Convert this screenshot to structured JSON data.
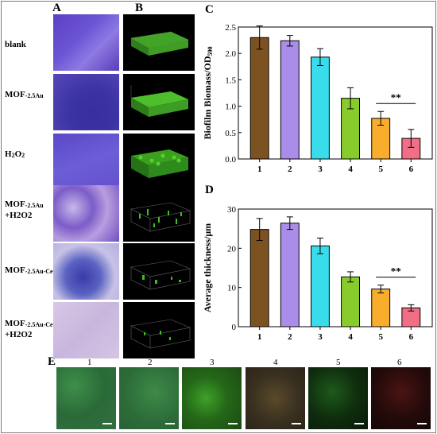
{
  "panels": {
    "A": "A",
    "B": "B",
    "C": "C",
    "D": "D",
    "E": "E"
  },
  "rows": [
    {
      "main": "blank",
      "sub": "",
      "line2": ""
    },
    {
      "main": "MOF",
      "sub": "-2.5Au",
      "line2": ""
    },
    {
      "main": "H",
      "sub": "2",
      "main2": "O",
      "sub2": "2",
      "line2": ""
    },
    {
      "main": "MOF",
      "sub": "-2.5Au",
      "line2": "+H2O2"
    },
    {
      "main": "MOF",
      "sub": "-2.5Au-Ce",
      "line2": ""
    },
    {
      "main": "MOF",
      "sub": "-2.5Au-Ce",
      "line2": "+H2O2"
    }
  ],
  "colors": {
    "bar1": "#7b5220",
    "bar2": "#a98de8",
    "bar3": "#39dcea",
    "bar4": "#87cb2c",
    "bar5": "#f8ad2c",
    "bar6": "#f06e86"
  },
  "micro_labels": [
    "1",
    "2",
    "3",
    "4",
    "5",
    "6"
  ],
  "chart_data": [
    {
      "type": "bar",
      "panel": "C",
      "categories": [
        "1",
        "2",
        "3",
        "4",
        "5",
        "6"
      ],
      "values": [
        2.3,
        2.24,
        1.93,
        1.15,
        0.77,
        0.39
      ],
      "errors": [
        0.22,
        0.1,
        0.16,
        0.2,
        0.13,
        0.17
      ],
      "ylabel": "Biofilm Biomass/OD",
      "ylabel_sub": "590",
      "ylim": [
        0,
        2.5
      ],
      "yticks": [
        "0.0",
        "0.5",
        "1.0",
        "1.5",
        "2.0",
        "2.5"
      ],
      "annotation": "**"
    },
    {
      "type": "bar",
      "panel": "D",
      "categories": [
        "1",
        "2",
        "3",
        "4",
        "5",
        "6"
      ],
      "values": [
        24.8,
        26.4,
        20.6,
        12.7,
        9.6,
        4.8
      ],
      "errors": [
        2.8,
        1.6,
        2.0,
        1.3,
        1.0,
        0.8
      ],
      "ylabel": "Average thickness/μm",
      "ylim": [
        0,
        30
      ],
      "yticks": [
        "0",
        "10",
        "20",
        "30"
      ],
      "annotation": "**"
    }
  ]
}
